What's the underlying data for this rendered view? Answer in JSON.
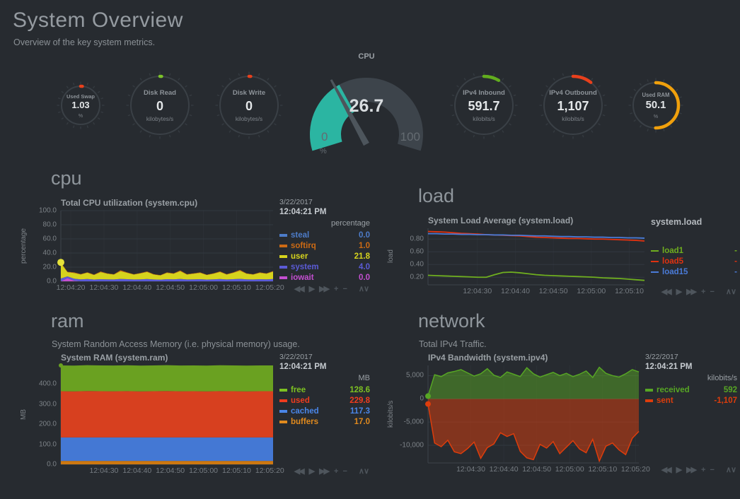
{
  "page": {
    "title": "System Overview",
    "subtitle": "Overview of the key system metrics."
  },
  "toolbar": {
    "items": [
      {
        "name": "backward",
        "glyph": "◀◀"
      },
      {
        "name": "play",
        "glyph": "▶"
      },
      {
        "name": "forward",
        "glyph": "▶▶"
      },
      {
        "name": "zoom-in",
        "glyph": "+"
      },
      {
        "name": "zoom-out",
        "glyph": "−"
      },
      {
        "name": "resize",
        "glyph": "∧∨"
      }
    ]
  },
  "gauges": [
    {
      "id": "used-swap",
      "title": "Used Swap",
      "value": "1.03",
      "units": "%",
      "percent": 1.03,
      "arc_pct": 1.2,
      "color": "#e8401c",
      "size": 72
    },
    {
      "id": "disk-read",
      "title": "Disk Read",
      "value": "0",
      "units": "kilobytes/s",
      "percent": 0,
      "arc_pct": 0.9,
      "color": "#7dc32a",
      "size": 100
    },
    {
      "id": "disk-write",
      "title": "Disk Write",
      "value": "0",
      "units": "kilobytes/s",
      "percent": 0,
      "arc_pct": 0.9,
      "color": "#e8401c",
      "size": 100
    },
    {
      "id": "ipv4-inbound",
      "title": "IPv4 Inbound",
      "value": "591.7",
      "units": "kilobits/s",
      "percent": 8.5,
      "arc_pct": 8.5,
      "color": "#62ad1e",
      "size": 100
    },
    {
      "id": "ipv4-outbound",
      "title": "IPv4 Outbound",
      "value": "1,107",
      "units": "kilobits/s",
      "percent": 10.5,
      "arc_pct": 10.5,
      "color": "#e8401c",
      "size": 100
    },
    {
      "id": "used-ram",
      "title": "Used RAM",
      "value": "50.1",
      "units": "%",
      "percent": 50.1,
      "arc_pct": 50.1,
      "color": "#f0a00c",
      "size": 82
    }
  ],
  "cpu_gauge": {
    "title": "CPU",
    "value": "26.7",
    "min": "0",
    "max": "100",
    "units": "%",
    "percent": 26.7,
    "color": "#2bb5a2"
  },
  "sections": {
    "cpu": {
      "heading": "cpu"
    },
    "load": {
      "heading": "load"
    },
    "ram": {
      "heading": "ram",
      "description": "System Random Access Memory (i.e. physical memory) usage."
    },
    "network": {
      "heading": "network",
      "description": "Total IPv4 Traffic."
    }
  },
  "chart_data": [
    {
      "id": "cpu",
      "type": "area",
      "stacked": true,
      "title": "Total CPU utilization (system.cpu)",
      "date": "3/22/2017",
      "time": "12:04:21 PM",
      "units_header": "percentage",
      "axis_label": "percentage",
      "grid": true,
      "legend_position": "right",
      "ylim": [
        0,
        100
      ],
      "yticks": [
        [
          0,
          "0.0"
        ],
        [
          20,
          "20.0"
        ],
        [
          40,
          "40.0"
        ],
        [
          60,
          "60.0"
        ],
        [
          80,
          "80.0"
        ],
        [
          100,
          "100.0"
        ]
      ],
      "x_start": "12:04:17",
      "x_end": "12:05:21",
      "xticks": [
        "12:04:20",
        "12:04:30",
        "12:04:40",
        "12:04:50",
        "12:05:00",
        "12:05:10",
        "12:05:20"
      ],
      "series": [
        {
          "name": "iowait",
          "color": "#c44fd0",
          "values": [
            0,
            4.5,
            0.8,
            0,
            0,
            0,
            0,
            0,
            0,
            0,
            0,
            0,
            0,
            0,
            0,
            0,
            0,
            0,
            0,
            0,
            0,
            0,
            0,
            0,
            0,
            0,
            0,
            0,
            0,
            0,
            0,
            0,
            0
          ]
        },
        {
          "name": "system",
          "color": "#5b5bd6",
          "values": [
            4,
            2.5,
            3,
            2.8,
            3.2,
            2.5,
            3,
            2.8,
            2.6,
            3.4,
            3,
            2.6,
            2.8,
            3.2,
            2.6,
            2.4,
            3,
            2.8,
            3.4,
            2.6,
            2.8,
            3,
            2.5,
            2.8,
            3.2,
            2.6,
            3,
            3.5,
            2.8,
            2.6,
            3,
            2.8,
            3.2
          ]
        },
        {
          "name": "user",
          "color": "#d6d31d",
          "values": [
            21.8,
            6,
            8,
            7,
            9,
            6.5,
            10,
            8,
            7,
            11,
            9,
            7,
            8.5,
            10,
            7,
            6,
            9,
            8,
            11,
            7,
            8,
            9,
            6.5,
            8,
            10,
            7,
            9,
            11.5,
            8,
            7,
            9,
            8,
            10.5
          ]
        },
        {
          "name": "softirq",
          "color": "#cc6a14",
          "values": [
            1,
            0.5,
            0.8,
            0.4,
            0.6,
            0.5,
            0.9,
            0.5,
            0.4,
            1.2,
            0.6,
            0.4,
            0.5,
            0.8,
            0.5,
            0.4,
            0.6,
            0.5,
            1,
            0.5,
            0.5,
            0.6,
            0.4,
            0.5,
            0.8,
            0.5,
            0.6,
            1.1,
            0.5,
            0.4,
            0.6,
            0.5,
            0.8
          ]
        },
        {
          "name": "steal",
          "color": "#4d7cc9",
          "values": [
            0,
            0,
            0,
            0,
            0,
            0,
            0,
            0,
            0,
            0,
            0,
            0,
            0,
            0,
            0,
            0,
            0,
            0,
            0,
            0,
            0,
            0,
            0,
            0,
            0,
            0,
            0,
            0,
            0,
            0,
            0,
            0,
            0
          ]
        }
      ],
      "legend": [
        {
          "name": "steal",
          "value": "0.0",
          "color": "#4d7cc9"
        },
        {
          "name": "softirq",
          "value": "1.0",
          "color": "#cc6a14"
        },
        {
          "name": "user",
          "value": "21.8",
          "color": "#d6d31d"
        },
        {
          "name": "system",
          "value": "4.0",
          "color": "#5b5bd6"
        },
        {
          "name": "iowait",
          "value": "0.0",
          "color": "#c44fd0"
        }
      ],
      "markers": [
        {
          "x": 0,
          "y": 26.8,
          "color": "#e6e23a",
          "r": 5
        }
      ]
    },
    {
      "id": "load",
      "type": "line",
      "stacked": false,
      "title": "System Load Average (system.load)",
      "legend_title": "system.load",
      "axis_label": "load",
      "grid": true,
      "legend_position": "right",
      "ylim": [
        0.08,
        0.97
      ],
      "yticks": [
        [
          0.2,
          "0.20"
        ],
        [
          0.4,
          "0.40"
        ],
        [
          0.6,
          "0.60"
        ],
        [
          0.8,
          "0.80"
        ]
      ],
      "x_start": "12:04:17",
      "x_end": "12:05:14",
      "xticks": [
        "12:04:30",
        "12:04:40",
        "12:04:50",
        "12:05:00",
        "12:05:10"
      ],
      "series": [
        {
          "name": "load1",
          "color": "#6fae1f",
          "values": [
            0.23,
            0.225,
            0.22,
            0.215,
            0.21,
            0.205,
            0.2,
            0.2,
            0.24,
            0.275,
            0.28,
            0.27,
            0.255,
            0.24,
            0.23,
            0.225,
            0.22,
            0.215,
            0.21,
            0.205,
            0.2,
            0.19,
            0.185,
            0.18,
            0.17,
            0.16,
            0.15
          ]
        },
        {
          "name": "load5",
          "color": "#e03210",
          "values": [
            0.92,
            0.915,
            0.91,
            0.9,
            0.89,
            0.885,
            0.88,
            0.87,
            0.865,
            0.86,
            0.855,
            0.85,
            0.84,
            0.83,
            0.825,
            0.82,
            0.815,
            0.81,
            0.81,
            0.805,
            0.8,
            0.8,
            0.795,
            0.79,
            0.785,
            0.78,
            0.77
          ]
        },
        {
          "name": "load15",
          "color": "#4a7bd8",
          "values": [
            0.885,
            0.885,
            0.88,
            0.88,
            0.875,
            0.875,
            0.87,
            0.87,
            0.865,
            0.865,
            0.86,
            0.86,
            0.855,
            0.85,
            0.85,
            0.845,
            0.84,
            0.84,
            0.835,
            0.835,
            0.83,
            0.83,
            0.825,
            0.825,
            0.82,
            0.82,
            0.815
          ]
        }
      ],
      "legend": [
        {
          "name": "load1",
          "value": "-",
          "color": "#6fae1f"
        },
        {
          "name": "load5",
          "value": "-",
          "color": "#e03210"
        },
        {
          "name": "load15",
          "value": "-",
          "color": "#4a7bd8"
        }
      ],
      "markers": []
    },
    {
      "id": "ram",
      "type": "area",
      "stacked": true,
      "title": "System RAM (system.ram)",
      "date": "3/22/2017",
      "time": "12:04:21 PM",
      "units_header": "MB",
      "axis_label": "MB",
      "grid": true,
      "legend_position": "right",
      "ylim": [
        0,
        492.7
      ],
      "yticks": [
        [
          0,
          "0.0"
        ],
        [
          100,
          "100.0"
        ],
        [
          200,
          "200.0"
        ],
        [
          300,
          "300.0"
        ],
        [
          400,
          "400.0"
        ]
      ],
      "x_start": "12:04:17",
      "x_end": "12:05:21",
      "xticks": [
        "12:04:30",
        "12:04:40",
        "12:04:50",
        "12:05:00",
        "12:05:10",
        "12:05:20"
      ],
      "series": [
        {
          "name": "buffers",
          "color": "#cc7811",
          "values": [
            17,
            17,
            17,
            17,
            17,
            17,
            17,
            17,
            17,
            17,
            17,
            17,
            17,
            17,
            17,
            17,
            17
          ]
        },
        {
          "name": "cached",
          "color": "#4478d4",
          "values": [
            117.3,
            117.3,
            117.3,
            117.3,
            117.3,
            117.3,
            117.3,
            117.3,
            117.3,
            117.3,
            117.3,
            117.3,
            117.3,
            117.3,
            117.3,
            117.3,
            117.3
          ]
        },
        {
          "name": "used",
          "color": "#d7401f",
          "values": [
            230,
            229,
            231,
            230,
            229.5,
            230.5,
            229,
            230,
            231,
            229.5,
            230,
            229,
            230.5,
            230,
            229,
            230,
            229.8
          ]
        },
        {
          "name": "free",
          "color": "#6aa121",
          "values": [
            128.6,
            128.6,
            128.6,
            128.6,
            128.6,
            128.6,
            128.6,
            128.6,
            128.6,
            128.6,
            128.6,
            128.6,
            128.6,
            128.6,
            128.6,
            128.6,
            128.6
          ]
        }
      ],
      "legend": [
        {
          "name": "free",
          "value": "128.6",
          "color": "#7dc122"
        },
        {
          "name": "used",
          "value": "229.8",
          "color": "#f03c1e"
        },
        {
          "name": "cached",
          "value": "117.3",
          "color": "#4a86e8"
        },
        {
          "name": "buffers",
          "value": "17.0",
          "color": "#e08a1e"
        }
      ],
      "markers": [
        {
          "x": 0,
          "y": 492.7,
          "color": "#6aa121",
          "r": 3
        }
      ]
    },
    {
      "id": "network",
      "type": "area",
      "stacked": false,
      "title": "IPv4 Bandwidth (system.ipv4)",
      "date": "3/22/2017",
      "time": "12:04:21 PM",
      "units_header": "kilobits/s",
      "axis_label": "kilobits/s",
      "grid": true,
      "legend_position": "right",
      "ylim": [
        -13800,
        7200
      ],
      "yticks": [
        [
          5000,
          "5,000"
        ],
        [
          0,
          "0"
        ],
        [
          -5000,
          "-5,000"
        ],
        [
          -10000,
          "-10,000"
        ]
      ],
      "x_start": "12:04:17",
      "x_end": "12:05:21",
      "xticks": [
        "12:04:30",
        "12:04:40",
        "12:04:50",
        "12:05:00",
        "12:05:10",
        "12:05:20"
      ],
      "series": [
        {
          "name": "received",
          "color": "#57a624",
          "values": [
            592,
            5200,
            4800,
            5600,
            5900,
            6300,
            5600,
            4900,
            5400,
            6500,
            5100,
            4600,
            5800,
            5300,
            4800,
            6700,
            5400,
            4700,
            5200,
            5700,
            5000,
            5500,
            4800,
            5300,
            6000,
            4600,
            6800,
            5500,
            5000,
            4700,
            5400,
            6300,
            5800
          ]
        },
        {
          "name": "sent",
          "color": "#dd3d0c",
          "values": [
            -1107,
            -9500,
            -10300,
            -8900,
            -11400,
            -11800,
            -10700,
            -9300,
            -12800,
            -10500,
            -9700,
            -7300,
            -8100,
            -7500,
            -11300,
            -12700,
            -13100,
            -9800,
            -10600,
            -9200,
            -11800,
            -10400,
            -9000,
            -10800,
            -11600,
            -8700,
            -13400,
            -10200,
            -9500,
            -11000,
            -12000,
            -8500,
            -7000
          ]
        }
      ],
      "legend": [
        {
          "name": "received",
          "value": "592",
          "color": "#57a624"
        },
        {
          "name": "sent",
          "value": "-1,107",
          "color": "#dd3d0c"
        }
      ],
      "markers": [
        {
          "x": 0,
          "y": 592,
          "color": "#57a624",
          "r": 4
        },
        {
          "x": 0,
          "y": -1107,
          "color": "#dd3d0c",
          "r": 4
        }
      ]
    }
  ]
}
